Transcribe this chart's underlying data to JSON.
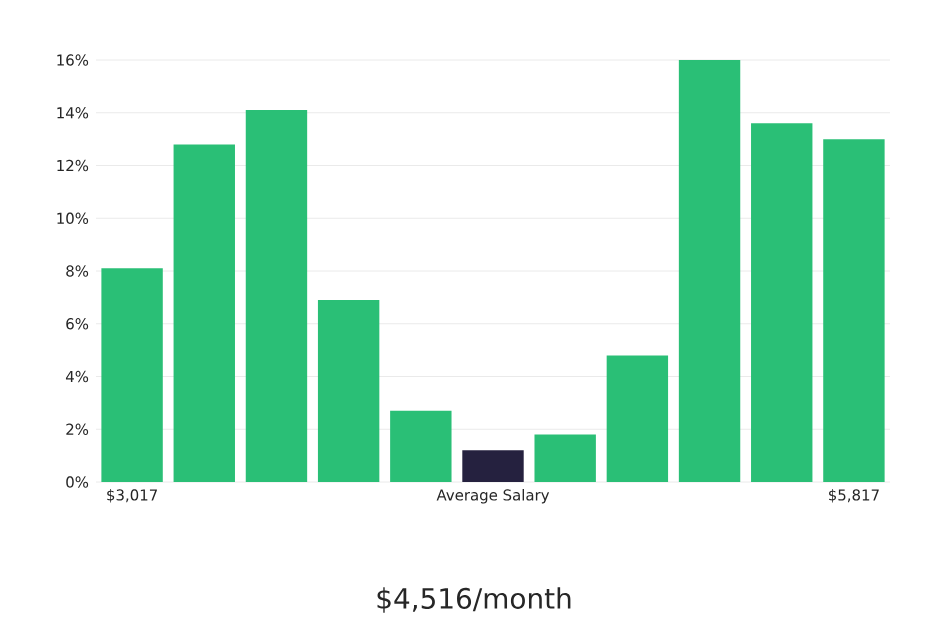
{
  "chart_data": {
    "type": "bar",
    "categories": [
      "$3,017",
      null,
      null,
      null,
      null,
      "Average Salary",
      null,
      null,
      null,
      null,
      "$5,817"
    ],
    "values": [
      8.1,
      12.8,
      14.1,
      6.9,
      2.7,
      1.2,
      1.8,
      4.8,
      16.0,
      13.6,
      13.0
    ],
    "colors": [
      "#2abf76",
      "#2abf76",
      "#2abf76",
      "#2abf76",
      "#2abf76",
      "#25213f",
      "#2abf76",
      "#2abf76",
      "#2abf76",
      "#2abf76",
      "#2abf76"
    ],
    "ylim": [
      0,
      16
    ],
    "yticks": [
      {
        "value": 0,
        "label": "0%"
      },
      {
        "value": 2,
        "label": "2%"
      },
      {
        "value": 4,
        "label": "4%"
      },
      {
        "value": 6,
        "label": "6%"
      },
      {
        "value": 8,
        "label": "8%"
      },
      {
        "value": 10,
        "label": "10%"
      },
      {
        "value": 12,
        "label": "12%"
      },
      {
        "value": 14,
        "label": "14%"
      },
      {
        "value": 16,
        "label": "16%"
      }
    ],
    "grid": "y",
    "annotations": [
      "$4,516/month"
    ]
  }
}
